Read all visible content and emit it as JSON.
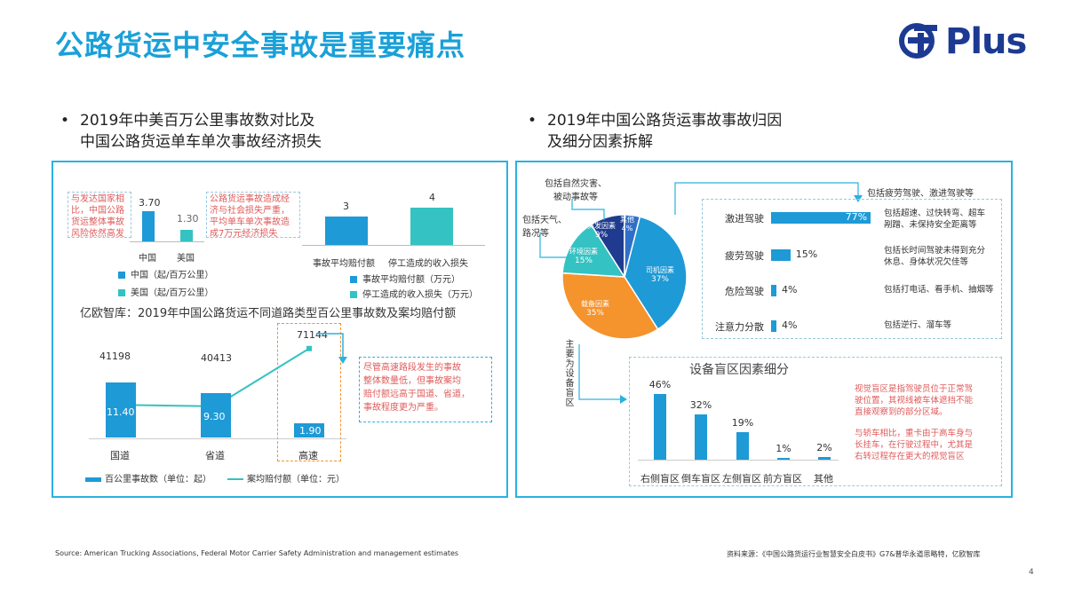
{
  "title": "公路货运中安全事故是重要痛点",
  "logo": {
    "text": "Plus"
  },
  "bullets": {
    "left": [
      "2019年中美百万公里事故数对比及",
      "中国公路货运单车单次事故经济损失"
    ],
    "right": [
      "2019年中国公路货运事故事故归因",
      "及细分因素拆解"
    ]
  },
  "us_china": {
    "note_left": [
      "与发达国家相",
      "比，中国公路",
      "货运整体事故",
      "风险依然高发"
    ],
    "note_right": [
      "公路货运事故造成经",
      "济与社会损失严重，",
      "平均单车单次事故造",
      "成7万元经济损失"
    ],
    "bars": [
      {
        "label": "中国",
        "value": "3.70",
        "v": 3.7
      },
      {
        "label": "美国",
        "value": "1.30",
        "v": 1.3
      }
    ],
    "legend": [
      "中国（起/百万公里）",
      "美国（起/百万公里）"
    ],
    "loss_bars": [
      {
        "label": "事故平均赔付额",
        "value": "3",
        "v": 3
      },
      {
        "label": "停工造成的收入损失",
        "value": "4",
        "v": 4
      }
    ],
    "loss_legend": [
      "事故平均赔付额（万元）",
      "停工造成的收入损失（万元）"
    ],
    "colors": {
      "bar_primary": "#1e9ad6",
      "bar_secondary": "#35c2c2"
    }
  },
  "road_chart": {
    "title": "亿欧智库：2019年中国公路货运不同道路类型百公里事故数及案均赔付额",
    "categories": [
      "国道",
      "省道",
      "高速"
    ],
    "accidents": [
      "11.40",
      "9.30",
      "1.90"
    ],
    "payout": [
      "41198",
      "40413",
      "71144"
    ],
    "note": [
      "尽管高速路段发生的事故",
      "整体数量低，但事故案均",
      "赔付额远高于国道、省道，",
      "事故程度更为严重。"
    ],
    "legend": [
      "百公里事故数（单位：起）",
      "案均赔付额（单位：元）"
    ]
  },
  "chart_data": [
    {
      "type": "bar",
      "title": "",
      "categories": [
        "中国",
        "美国"
      ],
      "values": [
        3.7,
        1.3
      ],
      "ylabel": "起/百万公里"
    },
    {
      "type": "bar",
      "title": "",
      "categories": [
        "事故平均赔付额",
        "停工造成的收入损失"
      ],
      "values": [
        3,
        4
      ],
      "ylabel": "万元"
    },
    {
      "type": "bar",
      "title": "亿欧智库：2019年中国公路货运不同道路类型百公里事故数及案均赔付额",
      "categories": [
        "国道",
        "省道",
        "高速"
      ],
      "series": [
        {
          "name": "百公里事故数（单位：起）",
          "values": [
            11.4,
            9.3,
            1.9
          ]
        },
        {
          "name": "案均赔付额（单位：元）",
          "values": [
            41198,
            40413,
            71144
          ]
        }
      ]
    },
    {
      "type": "pie",
      "title": "",
      "labels": [
        "司机因素",
        "载备因素",
        "环境因素",
        "突发因素",
        "其他"
      ],
      "values": [
        37,
        35,
        15,
        9,
        4
      ],
      "colors": [
        "#1e9ad6",
        "#f5932d",
        "#35c2c2",
        "#1e3b8f",
        "#2f6fc9"
      ]
    },
    {
      "type": "bar",
      "title": "",
      "categories": [
        "激进驾驶",
        "疲劳驾驶",
        "危险驾驶",
        "注意力分散"
      ],
      "values": [
        77,
        15,
        4,
        4
      ]
    },
    {
      "type": "bar",
      "title": "设备盲区因素细分",
      "categories": [
        "右侧盲区",
        "倒车盲区",
        "左侧盲区",
        "前方盲区",
        "其他"
      ],
      "values": [
        46,
        32,
        19,
        1,
        2
      ]
    }
  ],
  "pie": {
    "slices": [
      {
        "label": "司机因素",
        "pct": "37%",
        "v": 37,
        "color": "#1e9ad6"
      },
      {
        "label": "载备因素",
        "pct": "35%",
        "v": 35,
        "color": "#f5932d"
      },
      {
        "label": "环境因素",
        "pct": "15%",
        "v": 15,
        "color": "#35c2c2"
      },
      {
        "label": "突发因素",
        "pct": "9%",
        "v": 9,
        "color": "#1e3b8f"
      },
      {
        "label": "其他",
        "pct": "4%",
        "v": 4,
        "color": "#2f6fc9"
      }
    ],
    "callout_top": [
      "包括自然灾害、",
      "被动事故等"
    ],
    "callout_left": [
      "包括天气、",
      "路况等"
    ],
    "callout_driver": "包括疲劳驾驶、激进驾驶等",
    "vertical_label": "主要为设备盲区"
  },
  "driver_factors": {
    "rows": [
      {
        "label": "激进驾驶",
        "pct": "77%",
        "v": 77,
        "desc": [
          "包括超速、过快转弯、超车",
          "剐蹭、未保持安全距离等"
        ]
      },
      {
        "label": "疲劳驾驶",
        "pct": "15%",
        "v": 15,
        "desc": [
          "包括长时间驾驶未得到充分",
          "休息、身体状况欠佳等"
        ]
      },
      {
        "label": "危险驾驶",
        "pct": "4%",
        "v": 4,
        "desc": [
          "包括打电话、看手机、抽烟等"
        ]
      },
      {
        "label": "注意力分散",
        "pct": "4%",
        "v": 4,
        "desc": [
          "包括逆行、溜车等"
        ]
      }
    ]
  },
  "blind_spot": {
    "title": "设备盲区因素细分",
    "bars": [
      {
        "label": "右侧盲区",
        "pct": "46%",
        "v": 46
      },
      {
        "label": "倒车盲区",
        "pct": "32%",
        "v": 32
      },
      {
        "label": "左侧盲区",
        "pct": "19%",
        "v": 19
      },
      {
        "label": "前方盲区",
        "pct": "1%",
        "v": 1
      },
      {
        "label": "其他",
        "pct": "2%",
        "v": 2
      }
    ],
    "note1": [
      "视觉盲区是指驾驶员位于正常驾",
      "驶位置，其视线被车体遮挡不能",
      "直接观察到的部分区域。"
    ],
    "note2": [
      "与轿车相比，重卡由于高车身与",
      "长挂车，在行驶过程中，尤其是",
      "右转过程存在更大的视觉盲区"
    ]
  },
  "footer": {
    "source_left": "Source: American Trucking Associations, Federal Motor Carrier Safety Administration and management estimates",
    "source_right": "资料来源：《中国公路货运行业智慧安全白皮书》G7&普华永道思略特，亿欧智库",
    "page": "4"
  }
}
